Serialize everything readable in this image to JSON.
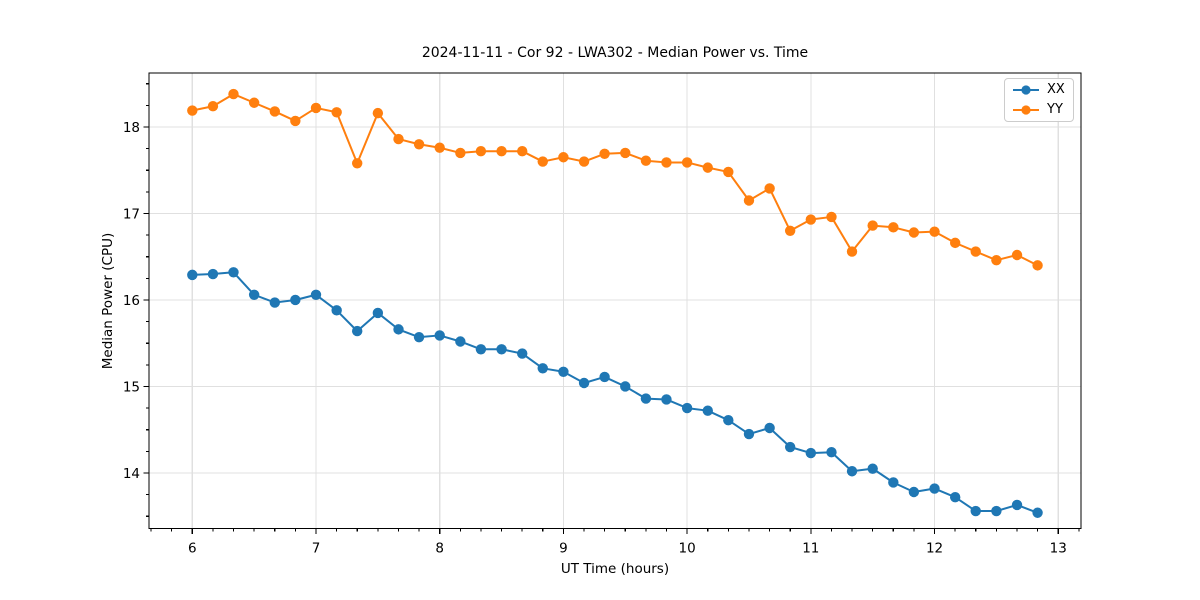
{
  "figure": {
    "background": "#ffffff",
    "spine_color": "#000000",
    "grid_color": "#e0e0e0",
    "tick_color": "#000000"
  },
  "chart_data": {
    "type": "line",
    "title": "2024-11-11 - Cor 92 - LWA302 - Median Power vs. Time",
    "xlabel": "UT Time (hours)",
    "ylabel": "Median Power (CPU)",
    "grid": true,
    "legend_position": "upper right",
    "marker": "circle",
    "xlim": [
      5.65,
      13.184
    ],
    "ylim": [
      13.358,
      18.624
    ],
    "xticks": [
      6,
      7,
      8,
      9,
      10,
      11,
      12,
      13
    ],
    "yticks": [
      14,
      15,
      16,
      17,
      18
    ],
    "x_minor_interval": 0.166667,
    "y_minor_interval": 0.25,
    "x": [
      6.0,
      6.167,
      6.333,
      6.5,
      6.667,
      6.833,
      7.0,
      7.167,
      7.333,
      7.5,
      7.667,
      7.833,
      8.0,
      8.167,
      8.333,
      8.5,
      8.667,
      8.833,
      9.0,
      9.167,
      9.333,
      9.5,
      9.667,
      9.833,
      10.0,
      10.167,
      10.333,
      10.5,
      10.667,
      10.833,
      11.0,
      11.167,
      11.333,
      11.5,
      11.667,
      11.833,
      12.0,
      12.167,
      12.333,
      12.5,
      12.667,
      12.833
    ],
    "series": [
      {
        "name": "XX",
        "color": "#1f77b4",
        "values": [
          16.29,
          16.3,
          16.32,
          16.06,
          15.97,
          16.0,
          16.06,
          15.88,
          15.64,
          15.85,
          15.66,
          15.57,
          15.59,
          15.52,
          15.43,
          15.43,
          15.38,
          15.21,
          15.17,
          15.04,
          15.11,
          15.0,
          14.86,
          14.85,
          14.75,
          14.72,
          14.61,
          14.45,
          14.52,
          14.3,
          14.23,
          14.24,
          14.02,
          14.05,
          13.89,
          13.78,
          13.82,
          13.72,
          13.56,
          13.56,
          13.63,
          13.54
        ]
      },
      {
        "name": "YY",
        "color": "#ff7f0e",
        "values": [
          18.19,
          18.24,
          18.38,
          18.28,
          18.18,
          18.07,
          18.22,
          18.17,
          17.58,
          18.16,
          17.86,
          17.8,
          17.76,
          17.7,
          17.72,
          17.72,
          17.72,
          17.6,
          17.65,
          17.6,
          17.69,
          17.7,
          17.61,
          17.59,
          17.59,
          17.53,
          17.48,
          17.15,
          17.29,
          16.8,
          16.93,
          16.96,
          16.56,
          16.86,
          16.84,
          16.78,
          16.79,
          16.66,
          16.56,
          16.46,
          16.52,
          16.4
        ]
      }
    ]
  }
}
